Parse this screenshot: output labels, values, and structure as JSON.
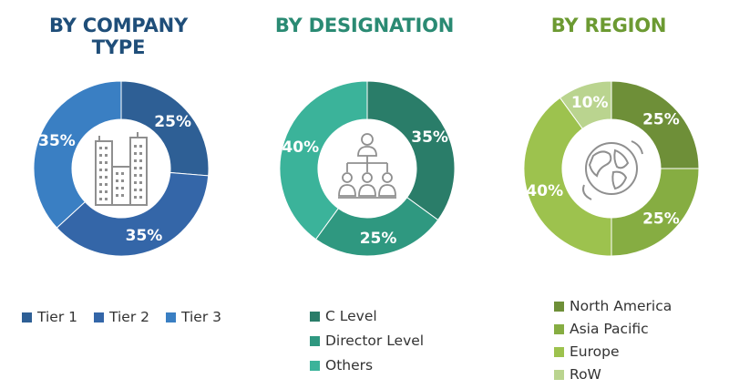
{
  "chart_data": [
    {
      "type": "pie",
      "title": "BY COMPANY TYPE",
      "title_color": "#1f4e79",
      "categories": [
        "Tier 1",
        "Tier 2",
        "Tier 3"
      ],
      "values": [
        25,
        35,
        35
      ],
      "labels": [
        "25%",
        "35%",
        "35%"
      ],
      "colors": [
        "#2e5f95",
        "#3466a8",
        "#3a7fc3"
      ],
      "legend": "bottom",
      "icon": "office-buildings-icon"
    },
    {
      "type": "pie",
      "title": "BY DESIGNATION",
      "title_color": "#2a8a73",
      "categories": [
        "C Level",
        "Director Level",
        "Others"
      ],
      "values": [
        35,
        25,
        40
      ],
      "labels": [
        "35%",
        "25%",
        "40%"
      ],
      "colors": [
        "#2a7d69",
        "#2f9880",
        "#3bb39a"
      ],
      "legend": "bottom",
      "icon": "org-hierarchy-icon"
    },
    {
      "type": "pie",
      "title": "BY REGION",
      "title_color": "#6c9a32",
      "categories": [
        "North America",
        "Asia Pacific",
        "Europe",
        "RoW"
      ],
      "values": [
        25,
        25,
        40,
        10
      ],
      "labels": [
        "25%",
        "25%",
        "40%",
        "10%"
      ],
      "colors": [
        "#6e8f38",
        "#86ad42",
        "#9dc24e",
        "#bad48f"
      ],
      "legend": "bottom",
      "icon": "globe-icon"
    }
  ]
}
